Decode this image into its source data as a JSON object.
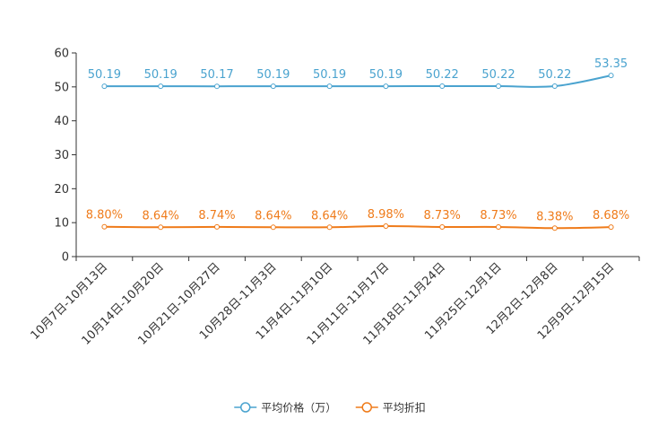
{
  "chart_data": {
    "type": "line",
    "title": "",
    "xlabel": "",
    "ylabel": "",
    "ylim": [
      0,
      60
    ],
    "yticks": [
      0,
      10,
      20,
      30,
      40,
      50,
      60
    ],
    "grid": false,
    "legend_position": "bottom-center",
    "categories": [
      "10月7日-10月13日",
      "10月14日-10月20日",
      "10月21日-10月27日",
      "10月28日-11月3日",
      "11月4日-11月10日",
      "11月11日-11月17日",
      "11月18日-11月24日",
      "11月25日-12月1日",
      "12月2日-12月8日",
      "12月9日-12月15日"
    ],
    "series": [
      {
        "name": "平均价格（万）",
        "color": "#4aa3cf",
        "values": [
          50.19,
          50.19,
          50.17,
          50.19,
          50.19,
          50.19,
          50.22,
          50.22,
          50.22,
          53.35
        ],
        "labels": [
          "50.19",
          "50.19",
          "50.17",
          "50.19",
          "50.19",
          "50.19",
          "50.22",
          "50.22",
          "50.22",
          "53.35"
        ]
      },
      {
        "name": "平均折扣",
        "color": "#ef7b1a",
        "values": [
          8.8,
          8.64,
          8.74,
          8.64,
          8.64,
          8.98,
          8.73,
          8.73,
          8.38,
          8.68
        ],
        "labels": [
          "8.80%",
          "8.64%",
          "8.74%",
          "8.64%",
          "8.64%",
          "8.98%",
          "8.73%",
          "8.73%",
          "8.38%",
          "8.68%"
        ]
      }
    ]
  }
}
